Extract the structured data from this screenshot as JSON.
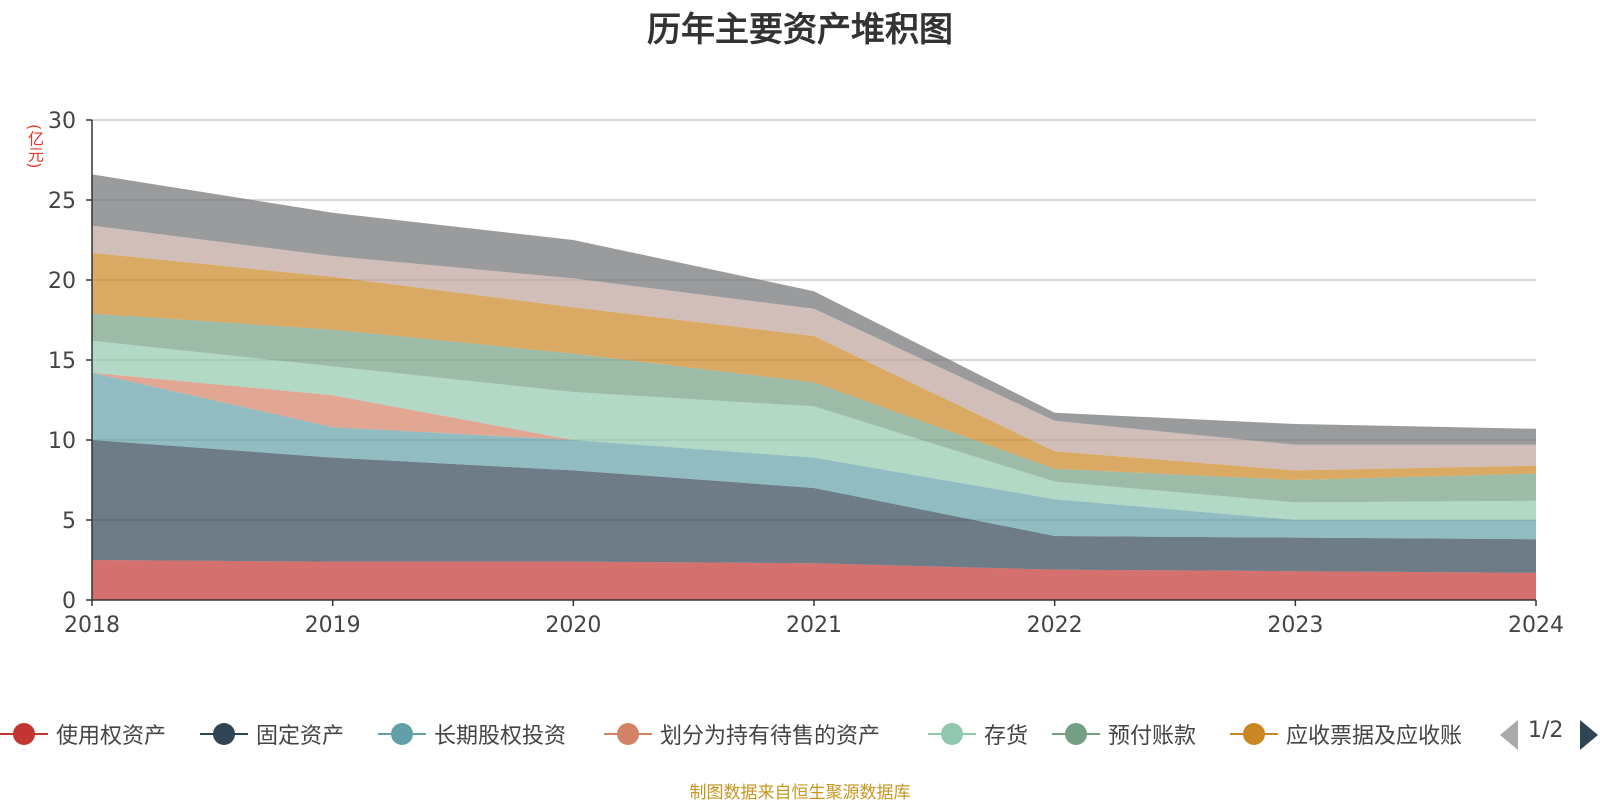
{
  "chart_data": {
    "type": "area",
    "stacked": true,
    "title": "历年主要资产堆积图",
    "ylabel": "(亿元)",
    "xlabel": "",
    "x": [
      "2018",
      "2019",
      "2020",
      "2021",
      "2022",
      "2023",
      "2024"
    ],
    "ylim": [
      0,
      30
    ],
    "yticks": [
      0,
      5,
      10,
      15,
      20,
      25,
      30
    ],
    "grid": true,
    "series": [
      {
        "name": "使用权资产",
        "color": "#c23531",
        "values": [
          2.5,
          2.4,
          2.4,
          2.3,
          1.9,
          1.8,
          1.7
        ],
        "show_in_legend": true
      },
      {
        "name": "固定资产",
        "color": "#2f4554",
        "values": [
          7.5,
          6.5,
          5.7,
          4.7,
          2.1,
          2.1,
          2.1
        ],
        "show_in_legend": true
      },
      {
        "name": "长期股权投资",
        "color": "#61a0a8",
        "values": [
          4.2,
          1.9,
          1.9,
          1.9,
          2.3,
          1.1,
          1.2
        ],
        "show_in_legend": true
      },
      {
        "name": "划分为持有待售的资产",
        "color": "#d48265",
        "values": [
          0.0,
          2.0,
          0.0,
          0.0,
          0.0,
          0.0,
          0.0
        ],
        "show_in_legend": true
      },
      {
        "name": "存货",
        "color": "#91c7ae",
        "values": [
          2.0,
          1.8,
          3.0,
          3.2,
          1.1,
          1.1,
          1.2
        ],
        "show_in_legend": true
      },
      {
        "name": "预付账款",
        "color": "#749f83",
        "values": [
          1.7,
          2.3,
          2.4,
          1.5,
          0.8,
          1.4,
          1.7
        ],
        "show_in_legend": true
      },
      {
        "name": "应收票据及应收账",
        "color": "#ca8622",
        "values": [
          3.8,
          3.3,
          2.9,
          2.9,
          1.1,
          0.6,
          0.5
        ],
        "show_in_legend": true
      },
      {
        "name": "",
        "color": "#bda29a",
        "values": [
          1.7,
          1.3,
          1.8,
          1.7,
          1.9,
          1.6,
          1.3
        ],
        "show_in_legend": false
      },
      {
        "name": "",
        "color": "#6e7074",
        "values": [
          3.2,
          2.7,
          2.4,
          1.1,
          0.5,
          1.3,
          1.0
        ],
        "show_in_legend": false
      }
    ],
    "legend_placement": "bottom"
  },
  "legend": {
    "page_indicator": "1/2"
  },
  "footer": {
    "source": "制图数据来自恒生聚源数据库"
  }
}
